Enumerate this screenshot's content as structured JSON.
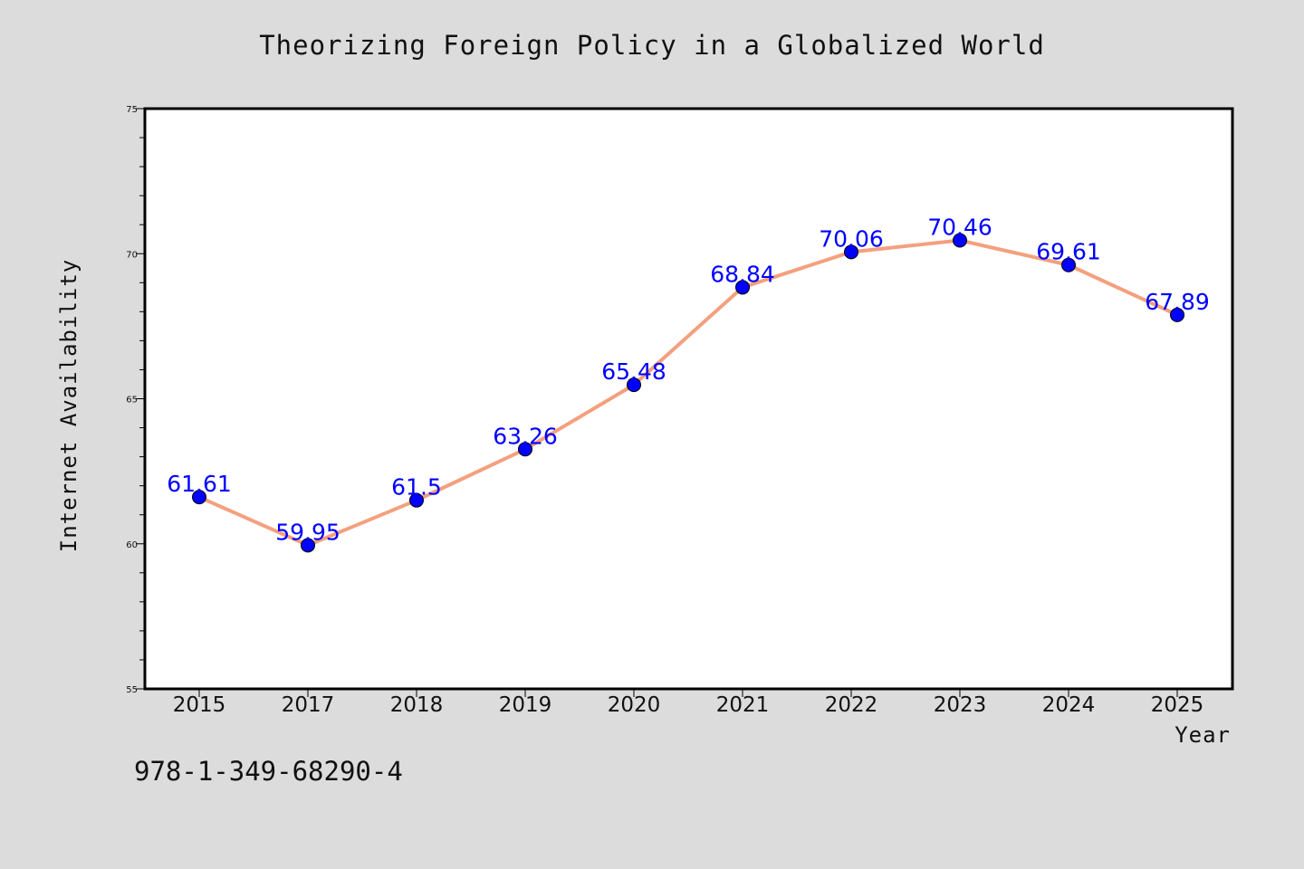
{
  "chart_data": {
    "type": "line",
    "title": "Theorizing Foreign Policy in a Globalized World",
    "xlabel": "Year",
    "ylabel": "Internet Availability",
    "categories": [
      "2015",
      "2017",
      "2018",
      "2019",
      "2020",
      "2021",
      "2022",
      "2023",
      "2024",
      "2025"
    ],
    "values": [
      61.61,
      59.95,
      61.5,
      63.26,
      65.48,
      68.84,
      70.06,
      70.46,
      69.61,
      67.89
    ],
    "point_labels": [
      "61.61",
      "59.95",
      "61.5",
      "63.26",
      "65.48",
      "68.84",
      "70.06",
      "70.46",
      "69.61",
      "67.89"
    ],
    "ylim": [
      55,
      75
    ],
    "yticks": [
      55,
      60,
      65,
      70,
      75
    ],
    "grid": false,
    "colors": {
      "line": "#f4a07e",
      "marker": "#0000ff",
      "label": "#0000ff",
      "background": "#dcdcdc",
      "plot_area": "#ffffff"
    }
  },
  "footer": {
    "isbn": "978-1-349-68290-4"
  }
}
